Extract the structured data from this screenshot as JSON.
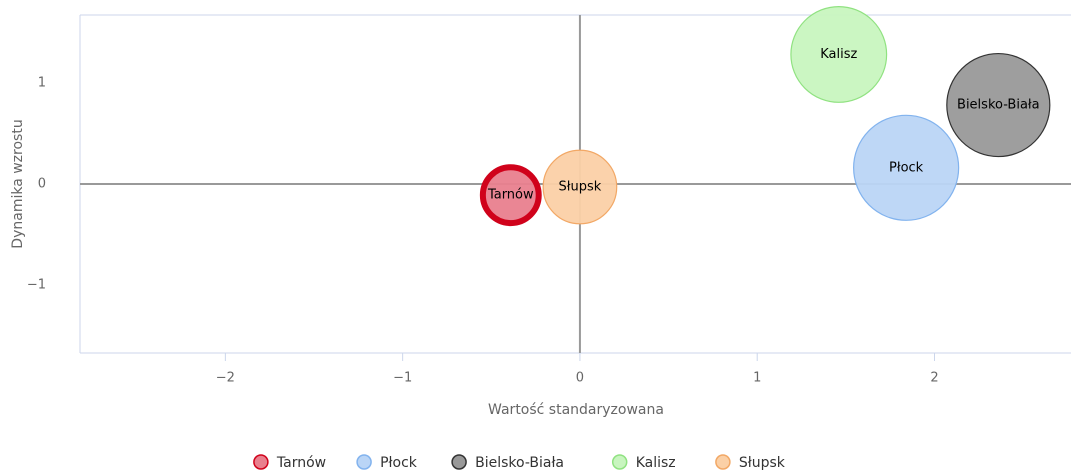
{
  "chart_data": {
    "type": "bubble",
    "xlabel": "Wartość standaryzowana",
    "ylabel": "Dynamika wzrostu",
    "xlim": [
      -2.82,
      2.77
    ],
    "ylim": [
      -1.67,
      1.67
    ],
    "xticks": [
      {
        "value": -2,
        "label": "−2"
      },
      {
        "value": -1,
        "label": "−1"
      },
      0,
      1,
      2
    ],
    "yticks": [
      {
        "value": -1,
        "label": "−1"
      },
      0,
      1
    ],
    "legend": "bottom",
    "series": [
      {
        "name": "Tarnów",
        "color": "#e9808e",
        "border": "#d0021b",
        "selected": true,
        "x": [
          -0.39
        ],
        "values": [
          -0.11
        ],
        "sizes": [
          30
        ]
      },
      {
        "name": "Płock",
        "color": "#bad5f6",
        "border": "#82b3ee",
        "x": [
          1.84
        ],
        "values": [
          0.16
        ],
        "sizes": [
          106
        ]
      },
      {
        "name": "Bielsko-Biała",
        "color": "#999999",
        "border": "#333333",
        "x": [
          2.36
        ],
        "values": [
          0.78
        ],
        "sizes": [
          102
        ]
      },
      {
        "name": "Kalisz",
        "color": "#c8f5bf",
        "border": "#90e281",
        "x": [
          1.46
        ],
        "values": [
          1.28
        ],
        "sizes": [
          88
        ]
      },
      {
        "name": "Słupsk",
        "color": "#fbd0a6",
        "border": "#f2a866",
        "x": [
          0.0
        ],
        "values": [
          -0.03
        ],
        "sizes": [
          52
        ]
      }
    ]
  }
}
